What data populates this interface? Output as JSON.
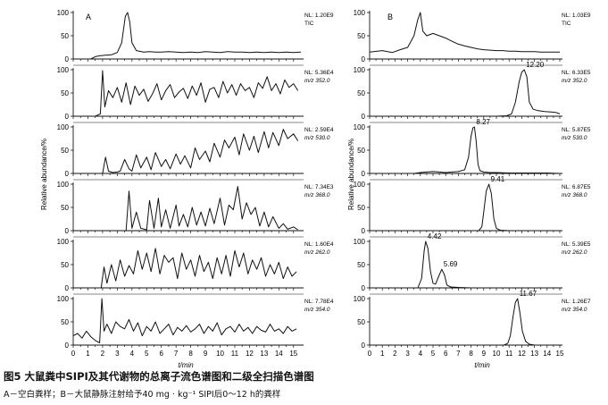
{
  "figure": {
    "caption": "图5  大鼠粪中SIPI及其代谢物的总离子流色谱图和二级全扫描色谱图",
    "subcaption": "A－空白粪样；B－大鼠静脉注射给予40 mg · kg⁻¹ SIPI后0～12 h的粪样",
    "y_axis_label": "Relative abundance/%",
    "x_axis_label": "t/min",
    "panel_letters": [
      "A",
      "B"
    ]
  },
  "chart_data": [
    {
      "type": "line",
      "panel": "A",
      "trace": 1,
      "nl": "NL: 1.20E9",
      "mz": "TIC",
      "xlim": [
        0,
        15.5
      ],
      "ylim": [
        0,
        100
      ],
      "x": [
        0,
        1.2,
        1.5,
        1.8,
        2.2,
        2.6,
        3.0,
        3.3,
        3.55,
        3.7,
        3.85,
        4.0,
        4.3,
        4.8,
        5.2,
        5.6,
        6.0,
        6.5,
        7.0,
        7.5,
        8.0,
        8.5,
        9.0,
        9.5,
        10.0,
        10.5,
        11.0,
        11.5,
        12.0,
        12.5,
        13.0,
        13.5,
        14.0,
        14.5,
        15.0,
        15.5
      ],
      "y": [
        0,
        0,
        5,
        7,
        8,
        9,
        14,
        35,
        92,
        100,
        80,
        35,
        18,
        15,
        16,
        15,
        15,
        16,
        15,
        14,
        15,
        14,
        16,
        15,
        14,
        16,
        15,
        15,
        14,
        15,
        14,
        15,
        14,
        15,
        14,
        15
      ]
    },
    {
      "type": "line",
      "panel": "A",
      "trace": 2,
      "nl": "NL: 5.36E4",
      "mz": "m/z 352.0",
      "xlim": [
        0,
        15.5
      ],
      "ylim": [
        0,
        100
      ],
      "x": [
        0,
        1.5,
        1.85,
        2.0,
        2.15,
        2.4,
        2.7,
        3.0,
        3.3,
        3.6,
        3.9,
        4.2,
        4.5,
        4.8,
        5.1,
        5.4,
        5.7,
        6.0,
        6.3,
        6.6,
        6.9,
        7.2,
        7.5,
        7.8,
        8.1,
        8.4,
        8.7,
        9.0,
        9.3,
        9.6,
        9.9,
        10.2,
        10.5,
        10.8,
        11.1,
        11.4,
        11.7,
        12.0,
        12.3,
        12.6,
        12.9,
        13.2,
        13.5,
        13.8,
        14.1,
        14.4,
        14.7,
        15.0,
        15.3
      ],
      "y": [
        0,
        0,
        5,
        98,
        20,
        55,
        40,
        62,
        30,
        72,
        25,
        65,
        45,
        58,
        32,
        48,
        70,
        35,
        55,
        68,
        40,
        52,
        60,
        38,
        65,
        45,
        72,
        30,
        58,
        62,
        40,
        75,
        50,
        68,
        45,
        70,
        55,
        62,
        40,
        72,
        60,
        85,
        55,
        70,
        48,
        78,
        62,
        70,
        55
      ]
    },
    {
      "type": "line",
      "panel": "A",
      "trace": 3,
      "nl": "NL: 2.59E4",
      "mz": "m/z 530.0",
      "xlim": [
        0,
        15.5
      ],
      "ylim": [
        0,
        100
      ],
      "x": [
        0,
        2.0,
        2.2,
        2.4,
        2.7,
        3.0,
        3.2,
        3.5,
        3.8,
        4.0,
        4.3,
        4.6,
        5.0,
        5.3,
        5.6,
        6.0,
        6.3,
        6.6,
        7.0,
        7.3,
        7.6,
        8.0,
        8.3,
        8.6,
        9.0,
        9.3,
        9.6,
        10.0,
        10.3,
        10.6,
        11.0,
        11.3,
        11.6,
        12.0,
        12.3,
        12.6,
        13.0,
        13.3,
        13.6,
        14.0,
        14.3,
        14.6,
        15.0,
        15.3
      ],
      "y": [
        0,
        0,
        35,
        5,
        2,
        3,
        5,
        30,
        10,
        5,
        40,
        12,
        35,
        8,
        45,
        15,
        30,
        10,
        42,
        20,
        38,
        12,
        55,
        30,
        48,
        25,
        65,
        35,
        72,
        55,
        78,
        40,
        85,
        50,
        80,
        45,
        90,
        55,
        88,
        60,
        95,
        75,
        85,
        70
      ]
    },
    {
      "type": "line",
      "panel": "A",
      "trace": 4,
      "nl": "NL: 7.34E3",
      "mz": "m/z 368.0",
      "xlim": [
        0,
        15.5
      ],
      "ylim": [
        0,
        100
      ],
      "x": [
        0,
        3.6,
        3.8,
        4.0,
        4.3,
        4.6,
        5.0,
        5.2,
        5.5,
        5.8,
        6.0,
        6.3,
        6.6,
        7.0,
        7.2,
        7.5,
        7.8,
        8.1,
        8.4,
        8.7,
        9.0,
        9.3,
        9.6,
        10.0,
        10.3,
        10.6,
        10.9,
        11.2,
        11.5,
        11.8,
        12.1,
        12.4,
        12.7,
        13.0,
        13.3,
        13.6,
        14.0,
        14.3,
        14.6,
        15.0,
        15.3
      ],
      "y": [
        0,
        0,
        85,
        5,
        40,
        5,
        2,
        65,
        5,
        70,
        8,
        45,
        5,
        55,
        10,
        35,
        8,
        50,
        12,
        40,
        10,
        48,
        15,
        70,
        12,
        55,
        45,
        95,
        25,
        60,
        35,
        50,
        10,
        40,
        8,
        30,
        5,
        15,
        3,
        8,
        2
      ]
    },
    {
      "type": "line",
      "panel": "A",
      "trace": 5,
      "nl": "NL: 1.60E4",
      "mz": "m/z 262.0",
      "xlim": [
        0,
        15.5
      ],
      "ylim": [
        0,
        100
      ],
      "x": [
        0,
        1.9,
        2.1,
        2.3,
        2.6,
        2.9,
        3.2,
        3.5,
        3.8,
        4.1,
        4.4,
        4.7,
        5.0,
        5.3,
        5.6,
        5.9,
        6.2,
        6.5,
        6.8,
        7.1,
        7.4,
        7.7,
        8.0,
        8.3,
        8.6,
        8.9,
        9.2,
        9.5,
        9.8,
        10.1,
        10.4,
        10.7,
        11.0,
        11.3,
        11.6,
        11.9,
        12.2,
        12.5,
        12.8,
        13.1,
        13.4,
        13.7,
        14.0,
        14.3,
        14.6,
        14.9,
        15.2
      ],
      "y": [
        0,
        0,
        45,
        10,
        50,
        15,
        60,
        25,
        48,
        30,
        80,
        40,
        75,
        35,
        85,
        30,
        70,
        55,
        65,
        20,
        75,
        40,
        60,
        25,
        70,
        35,
        55,
        20,
        65,
        30,
        70,
        25,
        80,
        45,
        75,
        30,
        60,
        40,
        65,
        25,
        50,
        30,
        55,
        20,
        45,
        25,
        35
      ]
    },
    {
      "type": "line",
      "panel": "A",
      "trace": 6,
      "nl": "NL: 7.78E4",
      "mz": "m/z 354.0",
      "xlim": [
        0,
        15.5
      ],
      "ylim": [
        0,
        100
      ],
      "x": [
        0,
        0.3,
        0.6,
        0.9,
        1.2,
        1.5,
        1.8,
        1.95,
        2.1,
        2.3,
        2.6,
        2.9,
        3.2,
        3.5,
        3.8,
        4.1,
        4.4,
        4.7,
        5.0,
        5.3,
        5.6,
        5.9,
        6.2,
        6.5,
        6.8,
        7.1,
        7.4,
        7.7,
        8.0,
        8.3,
        8.6,
        8.9,
        9.2,
        9.5,
        9.8,
        10.1,
        10.4,
        10.7,
        11.0,
        11.3,
        11.6,
        11.9,
        12.2,
        12.5,
        12.8,
        13.1,
        13.4,
        13.7,
        14.0,
        14.3,
        14.6,
        14.9,
        15.2
      ],
      "y": [
        20,
        25,
        15,
        30,
        18,
        10,
        5,
        100,
        30,
        45,
        25,
        50,
        40,
        35,
        55,
        30,
        48,
        20,
        40,
        30,
        50,
        25,
        35,
        45,
        22,
        38,
        30,
        42,
        28,
        35,
        45,
        25,
        40,
        30,
        48,
        22,
        35,
        40,
        28,
        45,
        30,
        38,
        25,
        40,
        32,
        28,
        45,
        30,
        35,
        25,
        40,
        30,
        35
      ]
    },
    {
      "type": "line",
      "panel": "B",
      "trace": 1,
      "nl": "NL: 1.03E9",
      "mz": "TIC",
      "xlim": [
        0,
        15
      ],
      "ylim": [
        0,
        100
      ],
      "x": [
        0,
        1.0,
        1.8,
        2.4,
        3.0,
        3.5,
        3.8,
        4.0,
        4.2,
        4.5,
        5.0,
        5.5,
        6.0,
        6.5,
        7.0,
        7.5,
        8.0,
        8.5,
        9.0,
        9.5,
        10.0,
        10.5,
        11.0,
        11.5,
        12.0,
        12.5,
        13.0,
        13.5,
        14.0,
        14.5,
        15.0
      ],
      "y": [
        15,
        18,
        14,
        20,
        25,
        50,
        85,
        100,
        60,
        50,
        55,
        50,
        45,
        38,
        32,
        28,
        25,
        22,
        20,
        19,
        18,
        18,
        17,
        17,
        16,
        16,
        16,
        15,
        15,
        15,
        15
      ]
    },
    {
      "type": "line",
      "panel": "B",
      "trace": 2,
      "nl": "NL: 6.33E5",
      "mz": "m/z 352.0",
      "xlim": [
        0,
        15
      ],
      "ylim": [
        0,
        100
      ],
      "x": [
        0,
        10.0,
        10.8,
        11.2,
        11.5,
        11.8,
        12.0,
        12.2,
        12.4,
        12.6,
        12.9,
        13.3,
        13.8,
        14.3,
        14.7,
        15.0
      ],
      "y": [
        0,
        0,
        1,
        5,
        30,
        75,
        95,
        100,
        85,
        30,
        15,
        12,
        10,
        9,
        8,
        5
      ],
      "annotations": [
        "12.20"
      ]
    },
    {
      "type": "line",
      "panel": "B",
      "trace": 3,
      "nl": "NL: 5.87E5",
      "mz": "m/z 530.0",
      "xlim": [
        0,
        15
      ],
      "ylim": [
        0,
        100
      ],
      "x": [
        0,
        3.5,
        4.0,
        4.5,
        5.0,
        5.5,
        6.0,
        6.5,
        7.0,
        7.5,
        7.8,
        8.0,
        8.15,
        8.27,
        8.4,
        8.55,
        8.7,
        9.0,
        9.5,
        10.0,
        11.0,
        12.0,
        13.0,
        14.0,
        15.0
      ],
      "y": [
        0,
        0,
        2,
        3,
        4,
        3,
        2,
        3,
        4,
        8,
        35,
        80,
        98,
        100,
        70,
        20,
        6,
        3,
        2,
        2,
        1,
        1,
        1,
        1,
        0
      ],
      "annotations": [
        "8.27"
      ]
    },
    {
      "type": "line",
      "panel": "B",
      "trace": 4,
      "nl": "NL: 6.87E5",
      "mz": "m/z 368.0",
      "xlim": [
        0,
        15
      ],
      "ylim": [
        0,
        100
      ],
      "x": [
        0,
        8.6,
        8.85,
        9.0,
        9.2,
        9.41,
        9.6,
        9.8,
        10.0,
        10.3,
        11.0,
        12.0,
        13.0,
        14.0,
        15.0
      ],
      "y": [
        0,
        0,
        8,
        40,
        85,
        100,
        80,
        25,
        5,
        1,
        0,
        0,
        0,
        0,
        0
      ],
      "annotations": [
        "9.41"
      ]
    },
    {
      "type": "line",
      "panel": "B",
      "trace": 5,
      "nl": "NL: 5.39E5",
      "mz": "m/z 262.0",
      "xlim": [
        0,
        15
      ],
      "ylim": [
        0,
        100
      ],
      "x": [
        0,
        3.8,
        4.1,
        4.3,
        4.42,
        4.6,
        4.8,
        5.0,
        5.2,
        5.45,
        5.69,
        5.9,
        6.1,
        6.4,
        7.0,
        8.0,
        9.0,
        10.0,
        11.0,
        12.0,
        13.0,
        14.0,
        15.0
      ],
      "y": [
        0,
        0,
        20,
        80,
        100,
        85,
        35,
        10,
        8,
        25,
        40,
        28,
        6,
        2,
        1,
        0,
        0,
        0,
        0,
        0,
        0,
        0,
        0
      ],
      "annotations": [
        "4.42",
        "5.69"
      ]
    },
    {
      "type": "line",
      "panel": "B",
      "trace": 6,
      "nl": "NL: 1.26E7",
      "mz": "m/z 354.0",
      "xlim": [
        0,
        15
      ],
      "ylim": [
        0,
        100
      ],
      "x": [
        0,
        10.6,
        10.9,
        11.1,
        11.3,
        11.5,
        11.67,
        11.85,
        12.05,
        12.3,
        12.6,
        13.0,
        14.0,
        15.0
      ],
      "y": [
        0,
        0,
        4,
        20,
        60,
        92,
        100,
        70,
        30,
        8,
        2,
        0,
        0,
        0
      ],
      "annotations": [
        "11.67"
      ]
    }
  ]
}
